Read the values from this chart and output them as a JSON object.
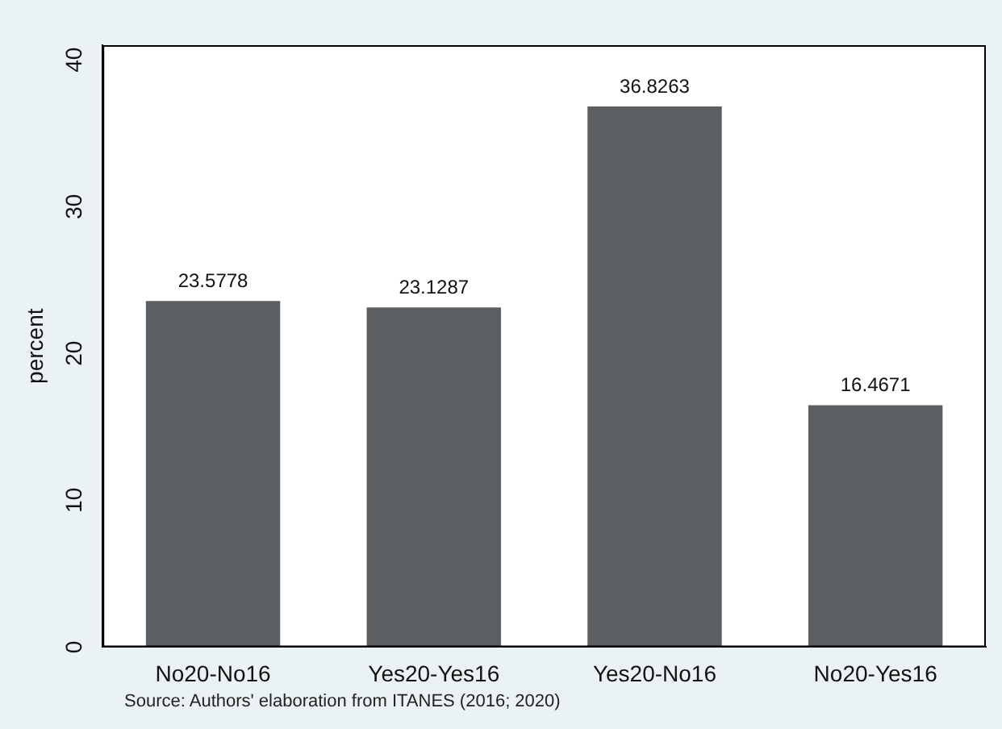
{
  "chart_data": {
    "type": "bar",
    "ylabel": "percent",
    "categories": [
      "No20-No16",
      "Yes20-Yes16",
      "Yes20-No16",
      "No20-Yes16"
    ],
    "values": [
      23.5778,
      23.1287,
      36.8263,
      16.4671
    ],
    "color": "#5b5f61",
    "ylim": [
      0,
      41
    ],
    "yticks": [
      0,
      10,
      20,
      30,
      40
    ],
    "grid": false,
    "legend": false,
    "data_labels": true,
    "annotations": [
      "Source: Authors' elaboration from ITANES (2016; 2020)"
    ]
  }
}
